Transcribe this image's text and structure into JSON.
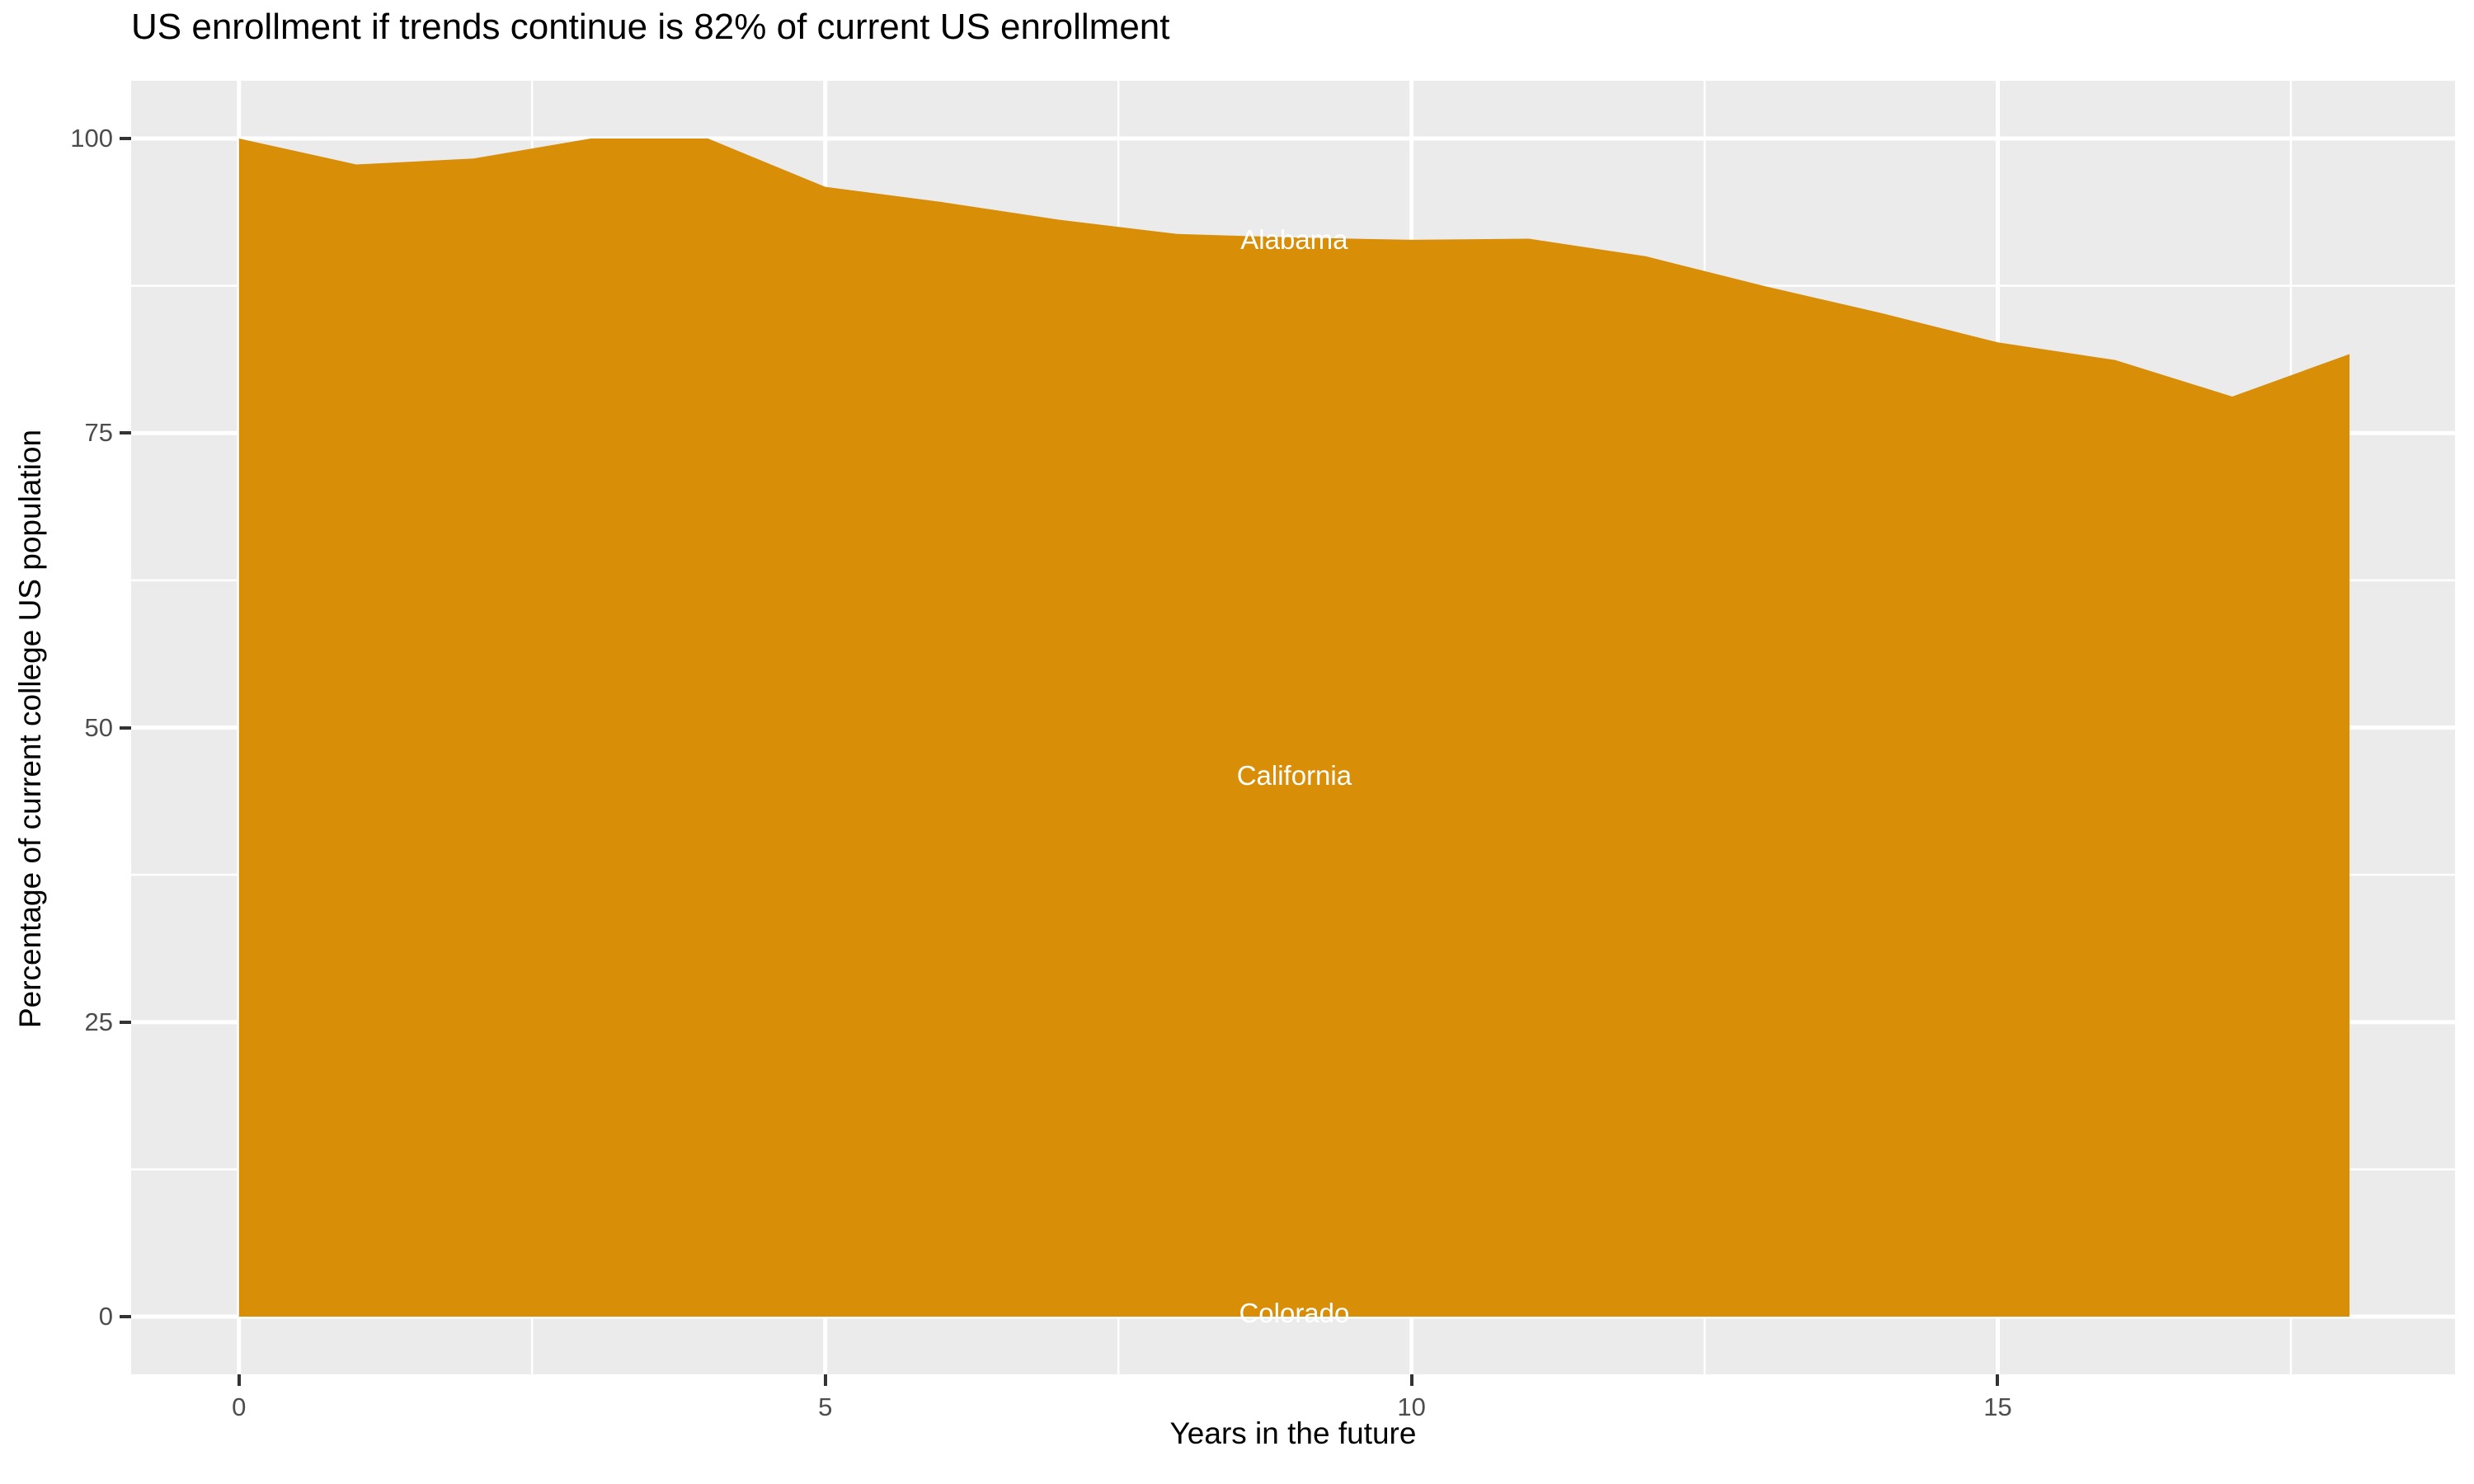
{
  "chart_data": {
    "type": "area",
    "title": "US enrollment if trends continue is 82% of current US enrollment",
    "xlabel": "Years in the future",
    "ylabel": "Percentage of current college US population",
    "x": [
      0,
      1,
      2,
      3,
      4,
      5,
      6,
      7,
      8,
      9,
      10,
      11,
      12,
      13,
      14,
      15,
      16,
      17,
      18
    ],
    "values": [
      100,
      97.8,
      98.3,
      100,
      100,
      95.9,
      94.6,
      93.1,
      91.9,
      91.6,
      91.4,
      91.5,
      90,
      87.5,
      85.2,
      82.7,
      81.2,
      78.1,
      81.7
    ],
    "stack_labels": [
      {
        "text": "Alabama",
        "x": 9,
        "y": 91.4
      },
      {
        "text": "California",
        "x": 9,
        "y": 45.9
      },
      {
        "text": "Colorado",
        "x": 9,
        "y": 0.3
      }
    ],
    "x_major_ticks": [
      0,
      5,
      10,
      15
    ],
    "y_major_ticks": [
      0,
      25,
      50,
      75,
      100
    ],
    "x_minor_ticks": [
      2.5,
      7.5,
      12.5,
      17.5
    ],
    "y_minor_ticks": [
      12.5,
      37.5,
      62.5,
      87.5
    ],
    "xlim": [
      -0.92,
      18.9
    ],
    "ylim": [
      -4.9,
      104.9
    ],
    "grid": true,
    "legend": "none",
    "colors": {
      "area": "#D98E08",
      "panel": "#EBEBEB",
      "grid": "#FFFFFF",
      "tick_mark": "#333333",
      "tick_text": "#4D4D4D",
      "title_text": "#000000",
      "label_text": "#FFFFFF"
    }
  }
}
